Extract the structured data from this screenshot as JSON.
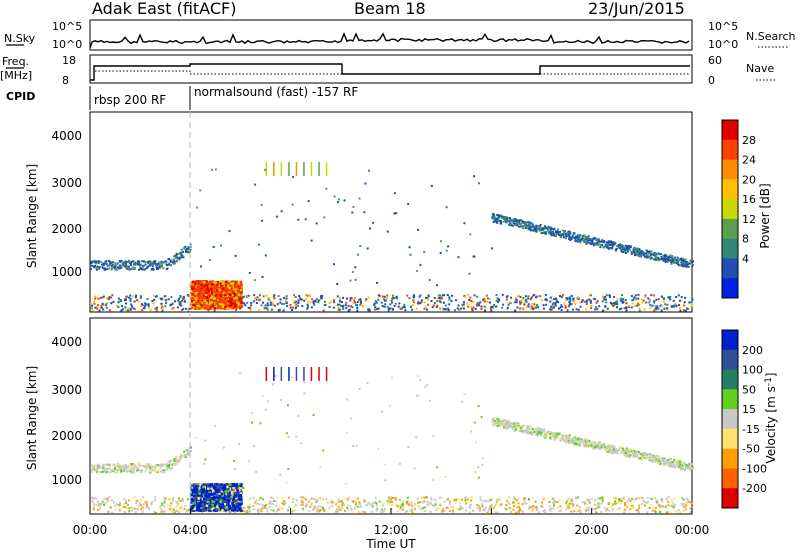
{
  "header": {
    "title": "Adak East (fitACF)",
    "beam": "Beam 18",
    "date": "23/Jun/2015"
  },
  "nsky_panel": {
    "left_label": "N.Sky",
    "right_label": "N.Search",
    "left_ticks": [
      "10^5",
      "10^0"
    ],
    "right_ticks": [
      "10^5",
      "10^0"
    ]
  },
  "freq_panel": {
    "left_label_line1": "Freq.",
    "left_label_line2": "[MHz]",
    "right_label": "Nave",
    "left_ticks": [
      "18",
      "8"
    ],
    "right_ticks": [
      "60",
      "0"
    ]
  },
  "cpid": {
    "label": "CPID",
    "segments": [
      {
        "text": "rbsp 200 RF",
        "start_hour": 0.0
      },
      {
        "text": "normalsound (fast) -157 RF",
        "start_hour": 4.0
      }
    ]
  },
  "colorbars": {
    "power": {
      "label": "Power [dB]",
      "ticks": [
        "28",
        "24",
        "20",
        "16",
        "12",
        "8",
        "4"
      ],
      "colors": [
        "#e00000",
        "#ff4000",
        "#ff8c00",
        "#ffc000",
        "#c8d800",
        "#5aa050",
        "#308878",
        "#2050b0",
        "#0020e0"
      ]
    },
    "velocity": {
      "label_main": "Velocity [m s",
      "label_sup": "-1",
      "label_end": "]",
      "ticks": [
        "200",
        "100",
        "50",
        "15",
        "-15",
        "-50",
        "-100",
        "-200"
      ],
      "colors": [
        "#0020d0",
        "#305098",
        "#208060",
        "#60d020",
        "#c8c8c8",
        "#ffe070",
        "#ffa000",
        "#ff6000",
        "#e00000"
      ]
    }
  },
  "chart_data": [
    {
      "type": "scatter",
      "title": "Power",
      "ylabel": "Slant Range [km]",
      "yticks": [
        "4000",
        "3000",
        "2000",
        "1000"
      ],
      "ylim": [
        200,
        4600
      ],
      "xlim": [
        0,
        24
      ],
      "regions": [
        {
          "x": [
            0,
            4
          ],
          "y": [
            1100,
            1400
          ],
          "level": "8-12 dB"
        },
        {
          "x": [
            4,
            6
          ],
          "y": [
            300,
            900
          ],
          "level": "16-28 dB"
        },
        {
          "x": [
            16,
            24
          ],
          "y": [
            1100,
            2400
          ],
          "level": "4-8 dB"
        },
        {
          "x": [
            7,
            9.5
          ],
          "y": [
            3200,
            3500
          ],
          "level": "16-24 dB"
        }
      ]
    },
    {
      "type": "scatter",
      "title": "Velocity",
      "ylabel": "Slant Range [km]",
      "yticks": [
        "4000",
        "3000",
        "2000",
        "1000"
      ],
      "xlabel": "Time UT",
      "xticks": [
        "00:00",
        "04:00",
        "08:00",
        "12:00",
        "16:00",
        "20:00",
        "00:00"
      ],
      "ylim": [
        200,
        4600
      ],
      "xlim": [
        0,
        24
      ],
      "regions": [
        {
          "x": [
            4,
            6
          ],
          "y": [
            300,
            900
          ],
          "level": "100-200 m/s"
        },
        {
          "x": [
            16,
            24
          ],
          "y": [
            1100,
            2400
          ],
          "level": "-15 to 15 m/s"
        }
      ]
    }
  ]
}
